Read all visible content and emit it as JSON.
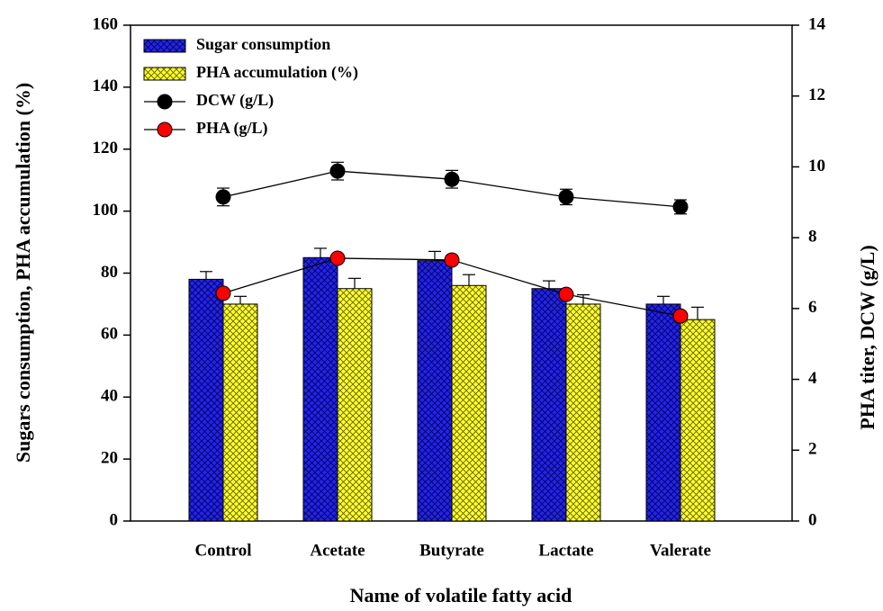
{
  "chart_data": {
    "type": "bar",
    "xlabel": "Name of volatile fatty acid",
    "ylabel": "Sugars consumption, PHA accumulation (%)",
    "y2label": "PHA titer, DCW (g/L)",
    "categories": [
      "Control",
      "Acetate",
      "Butyrate",
      "Lactate",
      "Valerate"
    ],
    "series": [
      {
        "name": "Sugar consumption",
        "type": "bar",
        "color": "#0000ff",
        "values": [
          78,
          85,
          84,
          75,
          70
        ],
        "errors": [
          2.5,
          3,
          3,
          2.5,
          2.5
        ]
      },
      {
        "name": "PHA accumulation (%)",
        "type": "bar",
        "color": "#ffff00",
        "values": [
          70,
          75,
          76,
          70,
          65
        ],
        "errors": [
          2.5,
          3.3,
          3.5,
          3,
          4
        ]
      },
      {
        "name": "DCW (g/L)",
        "type": "line",
        "axis": "y2",
        "color": "#000000",
        "values": [
          9.15,
          9.88,
          9.65,
          9.15,
          8.87
        ],
        "errors": [
          0.25,
          0.25,
          0.25,
          0.22,
          0.2
        ]
      },
      {
        "name": "PHA (g/L)",
        "type": "line",
        "axis": "y2",
        "color": "#ff0000",
        "values": [
          6.43,
          7.42,
          7.37,
          6.4,
          5.79
        ],
        "errors": [
          0.1,
          0.1,
          0.12,
          0.1,
          0.1
        ]
      }
    ],
    "ylim": [
      0,
      160
    ],
    "yticks": [
      0,
      20,
      40,
      60,
      80,
      100,
      120,
      140,
      160
    ],
    "y2lim": [
      0,
      14
    ],
    "y2ticks": [
      0,
      2,
      4,
      6,
      8,
      10,
      12,
      14
    ],
    "legend": "upper left"
  }
}
